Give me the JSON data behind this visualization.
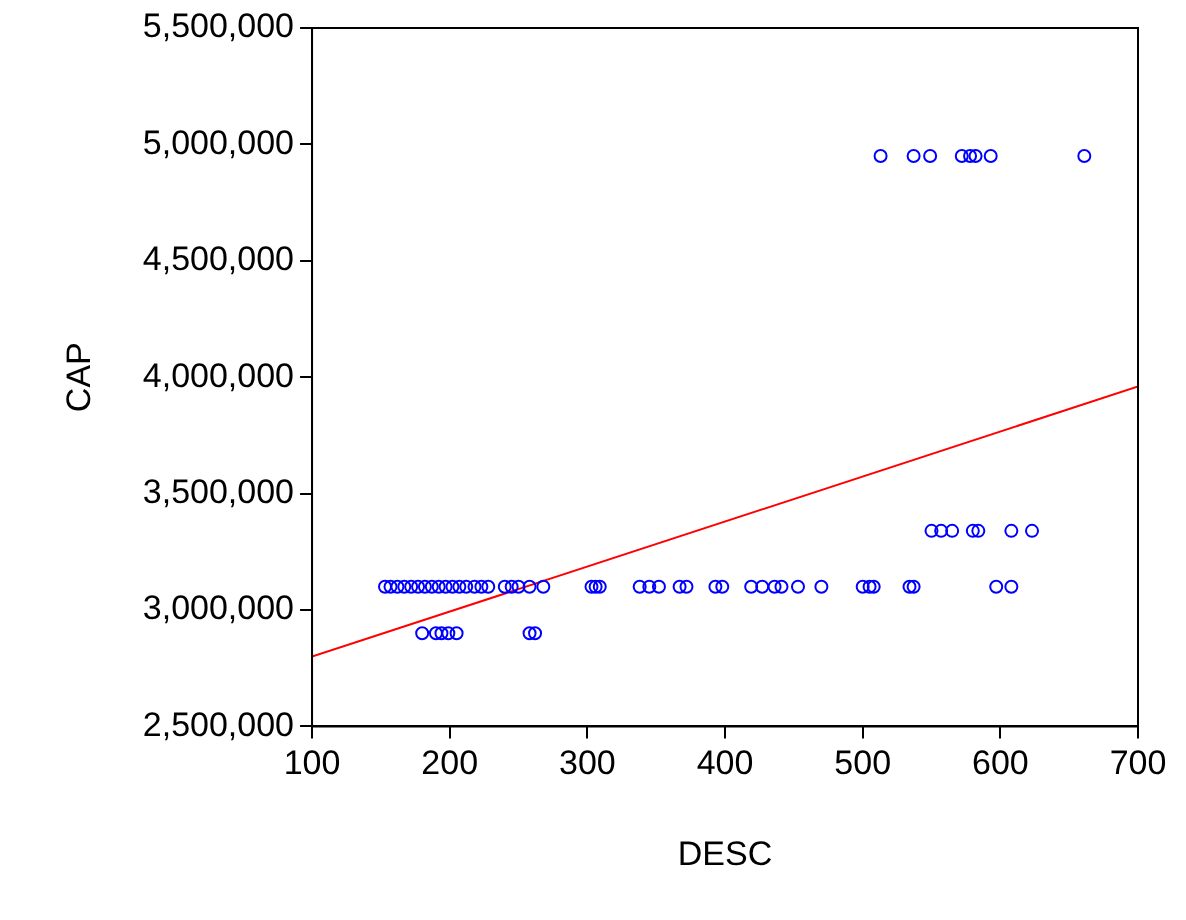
{
  "chart_data": {
    "type": "scatter",
    "xlabel": "DESC",
    "ylabel": "CAP",
    "xlim": [
      100,
      700
    ],
    "xticks": [
      100,
      200,
      300,
      400,
      500,
      600,
      700
    ],
    "ylim": [
      2500000,
      5500000
    ],
    "yticks": [
      {
        "value": 2500000,
        "label": "2,500,000"
      },
      {
        "value": 3000000,
        "label": "3,000,000"
      },
      {
        "value": 3500000,
        "label": "3,500,000"
      },
      {
        "value": 4000000,
        "label": "4,000,000"
      },
      {
        "value": 4500000,
        "label": "4,500,000"
      },
      {
        "value": 5000000,
        "label": "5,000,000"
      },
      {
        "value": 5500000,
        "label": "5,500,000"
      }
    ],
    "grid": false,
    "legend": false,
    "marker": "circle",
    "series": [
      {
        "color": "#0000ff",
        "x": [
          153,
          157,
          162,
          167,
          172,
          177,
          182,
          187,
          192,
          197,
          202,
          207,
          212,
          218,
          223,
          228,
          240,
          245,
          250,
          258,
          268,
          303,
          306,
          309,
          338,
          345,
          352,
          367,
          372,
          393,
          398,
          419,
          427,
          436,
          441,
          453,
          470,
          500,
          505,
          508,
          534,
          537,
          597,
          608
        ],
        "values": [
          3100000,
          3100000,
          3100000,
          3100000,
          3100000,
          3100000,
          3100000,
          3100000,
          3100000,
          3100000,
          3100000,
          3100000,
          3100000,
          3100000,
          3100000,
          3100000,
          3100000,
          3100000,
          3100000,
          3100000,
          3100000,
          3100000,
          3100000,
          3100000,
          3100000,
          3100000,
          3100000,
          3100000,
          3100000,
          3100000,
          3100000,
          3100000,
          3100000,
          3100000,
          3100000,
          3100000,
          3100000,
          3100000,
          3100000,
          3100000,
          3100000,
          3100000,
          3100000,
          3100000
        ]
      },
      {
        "color": "#0000ff",
        "x": [
          180,
          190,
          194,
          199,
          205,
          258,
          262
        ],
        "values": [
          2900000,
          2900000,
          2900000,
          2900000,
          2900000,
          2900000,
          2900000
        ]
      },
      {
        "color": "#0000ff",
        "x": [
          550,
          557,
          565,
          580,
          584,
          608,
          623
        ],
        "values": [
          3340000,
          3340000,
          3340000,
          3340000,
          3340000,
          3340000,
          3340000
        ]
      },
      {
        "color": "#0000ff",
        "x": [
          513,
          537,
          549,
          572,
          578,
          582,
          593,
          661
        ],
        "values": [
          4950000,
          4950000,
          4950000,
          4950000,
          4950000,
          4950000,
          4950000,
          4950000
        ]
      },
      {
        "type": "line",
        "marker": "none",
        "color": "#ff0000",
        "x": [
          100,
          700
        ],
        "values": [
          2800000,
          3960000
        ]
      }
    ]
  }
}
